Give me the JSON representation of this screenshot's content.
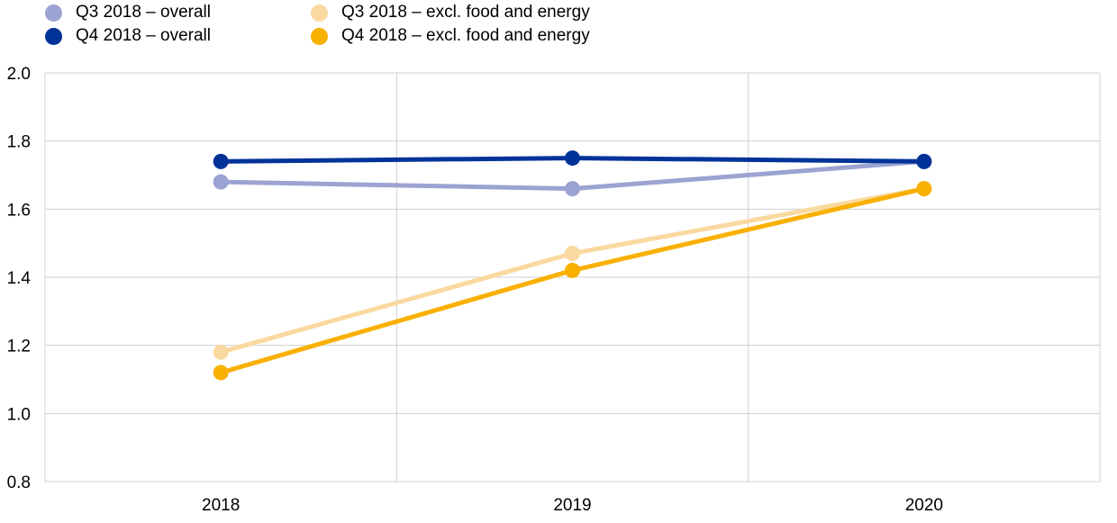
{
  "chart_data": {
    "type": "line",
    "categories": [
      "2018",
      "2019",
      "2020"
    ],
    "ylim": [
      0.8,
      2.0
    ],
    "yticks": [
      0.8,
      1.0,
      1.2,
      1.4,
      1.6,
      1.8,
      2.0
    ],
    "ytick_labels": [
      "0.8",
      "1.0",
      "1.2",
      "1.4",
      "1.6",
      "1.8",
      "2.0"
    ],
    "grid": true,
    "legend_position": "top-left",
    "series": [
      {
        "name": "Q3 2018 – overall",
        "color": "#9aa3d2",
        "values": [
          1.68,
          1.66,
          1.74
        ]
      },
      {
        "name": "Q4 2018 – overall",
        "color": "#003399",
        "values": [
          1.74,
          1.75,
          1.74
        ]
      },
      {
        "name": "Q3 2018 – excl. food and energy",
        "color": "#fad9a0",
        "values": [
          1.18,
          1.47,
          1.66
        ]
      },
      {
        "name": "Q4 2018 – excl. food and energy",
        "color": "#f9b000",
        "values": [
          1.12,
          1.42,
          1.66
        ]
      }
    ]
  }
}
